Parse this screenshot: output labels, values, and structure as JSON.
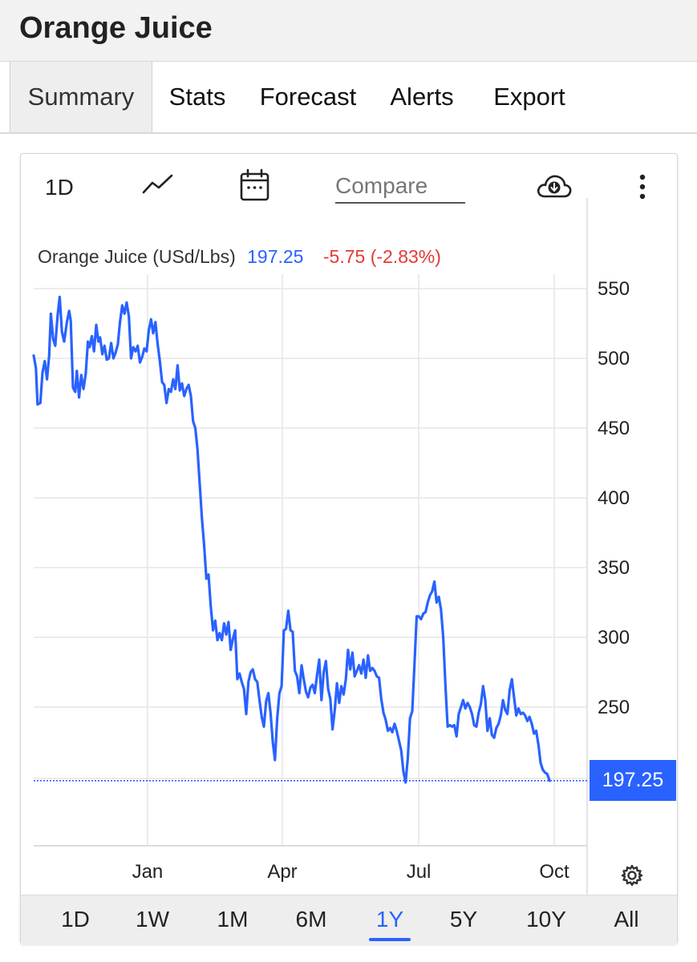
{
  "page": {
    "title": "Orange Juice"
  },
  "tabs": [
    "Summary",
    "Stats",
    "Forecast",
    "Alerts",
    "Export"
  ],
  "toolbar": {
    "interval_label": "1D",
    "line_icon": "line-chart-icon",
    "calendar_icon": "calendar-icon",
    "compare_placeholder": "Compare",
    "download_icon": "cloud-download-icon",
    "more_icon": "more-vertical-icon"
  },
  "legend": {
    "name": "Orange Juice (USd/Lbs)",
    "value": "197.25",
    "change": "-5.75 (-2.83%)"
  },
  "last_price_label": "197.25",
  "settings_icon": "gear-icon",
  "ranges": [
    "1D",
    "1W",
    "1M",
    "6M",
    "1Y",
    "5Y",
    "10Y",
    "All"
  ],
  "active_range": "1Y",
  "colors": {
    "line": "#2962ff",
    "change_negative": "#e53935",
    "grid": "#e6e6e6"
  },
  "chart_data": {
    "type": "line",
    "x_tick_labels": [
      "Jan",
      "Apr",
      "Jul",
      "Oct"
    ],
    "x_tick_positions": [
      0.2057,
      0.4493,
      0.6957,
      0.9406
    ],
    "y_ticks": [
      550,
      500,
      450,
      400,
      350,
      300,
      250
    ],
    "ylim": [
      165,
      555
    ],
    "last_value": 197.25,
    "grid": true,
    "series": [
      {
        "name": "Orange Juice (USd/Lbs)",
        "points": [
          [
            0.0,
            502
          ],
          [
            0.004,
            493
          ],
          [
            0.007,
            467
          ],
          [
            0.012,
            468
          ],
          [
            0.016,
            490
          ],
          [
            0.02,
            498
          ],
          [
            0.024,
            485
          ],
          [
            0.028,
            502
          ],
          [
            0.031,
            532
          ],
          [
            0.035,
            514
          ],
          [
            0.039,
            509
          ],
          [
            0.043,
            530
          ],
          [
            0.047,
            544
          ],
          [
            0.051,
            519
          ],
          [
            0.055,
            512
          ],
          [
            0.06,
            526
          ],
          [
            0.064,
            534
          ],
          [
            0.067,
            527
          ],
          [
            0.071,
            479
          ],
          [
            0.075,
            476
          ],
          [
            0.078,
            491
          ],
          [
            0.082,
            472
          ],
          [
            0.086,
            488
          ],
          [
            0.09,
            478
          ],
          [
            0.094,
            489
          ],
          [
            0.098,
            512
          ],
          [
            0.101,
            508
          ],
          [
            0.105,
            516
          ],
          [
            0.109,
            505
          ],
          [
            0.113,
            524
          ],
          [
            0.117,
            512
          ],
          [
            0.12,
            515
          ],
          [
            0.124,
            503
          ],
          [
            0.128,
            509
          ],
          [
            0.132,
            499
          ],
          [
            0.136,
            500
          ],
          [
            0.14,
            511
          ],
          [
            0.144,
            500
          ],
          [
            0.148,
            504
          ],
          [
            0.152,
            510
          ],
          [
            0.156,
            526
          ],
          [
            0.16,
            538
          ],
          [
            0.164,
            532
          ],
          [
            0.168,
            540
          ],
          [
            0.172,
            530
          ],
          [
            0.176,
            500
          ],
          [
            0.18,
            508
          ],
          [
            0.184,
            505
          ],
          [
            0.188,
            509
          ],
          [
            0.192,
            497
          ],
          [
            0.196,
            501
          ],
          [
            0.2,
            507
          ],
          [
            0.204,
            505
          ],
          [
            0.208,
            520
          ],
          [
            0.212,
            528
          ],
          [
            0.216,
            518
          ],
          [
            0.22,
            526
          ],
          [
            0.224,
            510
          ],
          [
            0.228,
            498
          ],
          [
            0.232,
            483
          ],
          [
            0.236,
            481
          ],
          [
            0.24,
            468
          ],
          [
            0.244,
            478
          ],
          [
            0.248,
            476
          ],
          [
            0.252,
            485
          ],
          [
            0.256,
            478
          ],
          [
            0.26,
            495
          ],
          [
            0.264,
            477
          ],
          [
            0.268,
            482
          ],
          [
            0.272,
            473
          ],
          [
            0.276,
            478
          ],
          [
            0.28,
            481
          ],
          [
            0.284,
            473
          ],
          [
            0.288,
            455
          ],
          [
            0.292,
            450
          ],
          [
            0.296,
            435
          ],
          [
            0.3,
            410
          ],
          [
            0.304,
            385
          ],
          [
            0.308,
            366
          ],
          [
            0.312,
            342
          ],
          [
            0.316,
            345
          ],
          [
            0.32,
            322
          ],
          [
            0.324,
            305
          ],
          [
            0.328,
            312
          ],
          [
            0.332,
            298
          ],
          [
            0.336,
            303
          ],
          [
            0.34,
            298
          ],
          [
            0.344,
            310
          ],
          [
            0.348,
            302
          ],
          [
            0.352,
            311
          ],
          [
            0.356,
            291
          ],
          [
            0.36,
            299
          ],
          [
            0.364,
            305
          ],
          [
            0.368,
            270
          ],
          [
            0.372,
            274
          ],
          [
            0.376,
            268
          ],
          [
            0.38,
            263
          ],
          [
            0.384,
            245
          ],
          [
            0.388,
            268
          ],
          [
            0.392,
            275
          ],
          [
            0.396,
            277
          ],
          [
            0.4,
            270
          ],
          [
            0.404,
            268
          ],
          [
            0.408,
            255
          ],
          [
            0.412,
            243
          ],
          [
            0.416,
            236
          ],
          [
            0.42,
            254
          ],
          [
            0.424,
            260
          ],
          [
            0.428,
            246
          ],
          [
            0.432,
            225
          ],
          [
            0.436,
            212
          ],
          [
            0.44,
            242
          ],
          [
            0.444,
            260
          ],
          [
            0.448,
            265
          ],
          [
            0.452,
            305
          ],
          [
            0.456,
            306
          ],
          [
            0.46,
            319
          ],
          [
            0.464,
            305
          ],
          [
            0.468,
            304
          ],
          [
            0.472,
            276
          ],
          [
            0.476,
            272
          ],
          [
            0.48,
            260
          ],
          [
            0.484,
            280
          ],
          [
            0.488,
            270
          ],
          [
            0.492,
            261
          ],
          [
            0.496,
            257
          ],
          [
            0.5,
            264
          ],
          [
            0.504,
            266
          ],
          [
            0.508,
            260
          ],
          [
            0.512,
            273
          ],
          [
            0.516,
            284
          ],
          [
            0.52,
            255
          ],
          [
            0.524,
            275
          ],
          [
            0.528,
            283
          ],
          [
            0.532,
            263
          ],
          [
            0.536,
            256
          ],
          [
            0.54,
            234
          ],
          [
            0.544,
            248
          ],
          [
            0.548,
            267
          ],
          [
            0.552,
            253
          ],
          [
            0.556,
            265
          ],
          [
            0.56,
            259
          ],
          [
            0.564,
            270
          ],
          [
            0.568,
            291
          ],
          [
            0.572,
            277
          ],
          [
            0.576,
            289
          ],
          [
            0.58,
            272
          ],
          [
            0.584,
            276
          ],
          [
            0.588,
            280
          ],
          [
            0.592,
            274
          ],
          [
            0.596,
            284
          ],
          [
            0.6,
            271
          ],
          [
            0.604,
            287
          ],
          [
            0.608,
            276
          ],
          [
            0.612,
            278
          ],
          [
            0.616,
            276
          ],
          [
            0.62,
            272
          ],
          [
            0.624,
            271
          ],
          [
            0.628,
            256
          ],
          [
            0.632,
            246
          ],
          [
            0.636,
            241
          ],
          [
            0.64,
            233
          ],
          [
            0.644,
            235
          ],
          [
            0.648,
            232
          ],
          [
            0.652,
            238
          ],
          [
            0.656,
            233
          ],
          [
            0.66,
            226
          ],
          [
            0.664,
            219
          ],
          [
            0.668,
            204
          ],
          [
            0.672,
            196
          ],
          [
            0.676,
            213
          ],
          [
            0.68,
            242
          ],
          [
            0.684,
            247
          ],
          [
            0.688,
            280
          ],
          [
            0.692,
            315
          ],
          [
            0.696,
            315
          ],
          [
            0.7,
            313
          ],
          [
            0.704,
            317
          ],
          [
            0.708,
            318
          ],
          [
            0.712,
            325
          ],
          [
            0.716,
            330
          ],
          [
            0.72,
            333
          ],
          [
            0.724,
            340
          ],
          [
            0.728,
            325
          ],
          [
            0.732,
            329
          ],
          [
            0.736,
            320
          ],
          [
            0.74,
            300
          ],
          [
            0.744,
            265
          ],
          [
            0.748,
            236
          ],
          [
            0.752,
            237
          ],
          [
            0.756,
            236
          ],
          [
            0.76,
            237
          ],
          [
            0.764,
            229
          ],
          [
            0.768,
            245
          ],
          [
            0.772,
            250
          ],
          [
            0.776,
            255
          ],
          [
            0.78,
            249
          ],
          [
            0.784,
            253
          ],
          [
            0.788,
            250
          ],
          [
            0.792,
            245
          ],
          [
            0.796,
            237
          ],
          [
            0.8,
            236
          ],
          [
            0.804,
            246
          ],
          [
            0.808,
            252
          ],
          [
            0.812,
            265
          ],
          [
            0.816,
            255
          ],
          [
            0.82,
            233
          ],
          [
            0.824,
            242
          ],
          [
            0.828,
            230
          ],
          [
            0.832,
            228
          ],
          [
            0.836,
            235
          ],
          [
            0.84,
            238
          ],
          [
            0.844,
            244
          ],
          [
            0.848,
            255
          ],
          [
            0.852,
            248
          ],
          [
            0.856,
            245
          ],
          [
            0.86,
            262
          ],
          [
            0.864,
            270
          ],
          [
            0.868,
            257
          ],
          [
            0.872,
            244
          ],
          [
            0.876,
            249
          ],
          [
            0.88,
            245
          ],
          [
            0.884,
            246
          ],
          [
            0.888,
            244
          ],
          [
            0.892,
            240
          ],
          [
            0.896,
            243
          ],
          [
            0.9,
            238
          ],
          [
            0.904,
            231
          ],
          [
            0.908,
            233
          ],
          [
            0.912,
            223
          ],
          [
            0.916,
            210
          ],
          [
            0.92,
            205
          ],
          [
            0.924,
            203
          ],
          [
            0.928,
            202
          ],
          [
            0.932,
            197.25
          ]
        ]
      }
    ]
  }
}
